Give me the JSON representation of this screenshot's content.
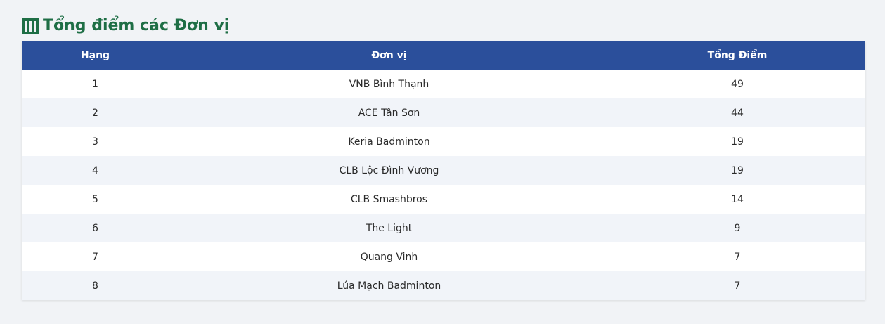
{
  "header": {
    "title": "Tổng điểm các Đơn vị",
    "icon": "building-icon",
    "accent_color": "#1e6e45"
  },
  "table": {
    "header_color": "#2b4f9b",
    "columns": [
      "Hạng",
      "Đơn vị",
      "Tổng Điểm"
    ],
    "rows": [
      {
        "rank": "1",
        "unit": "VNB Bình Thạnh",
        "total": "49"
      },
      {
        "rank": "2",
        "unit": "ACE Tân Sơn",
        "total": "44"
      },
      {
        "rank": "3",
        "unit": "Keria Badminton",
        "total": "19"
      },
      {
        "rank": "4",
        "unit": "CLB Lộc Đình Vương",
        "total": "19"
      },
      {
        "rank": "5",
        "unit": "CLB Smashbros",
        "total": "14"
      },
      {
        "rank": "6",
        "unit": "The Light",
        "total": "9"
      },
      {
        "rank": "7",
        "unit": "Quang Vinh",
        "total": "7"
      },
      {
        "rank": "8",
        "unit": "Lúa Mạch Badminton",
        "total": "7"
      }
    ]
  }
}
